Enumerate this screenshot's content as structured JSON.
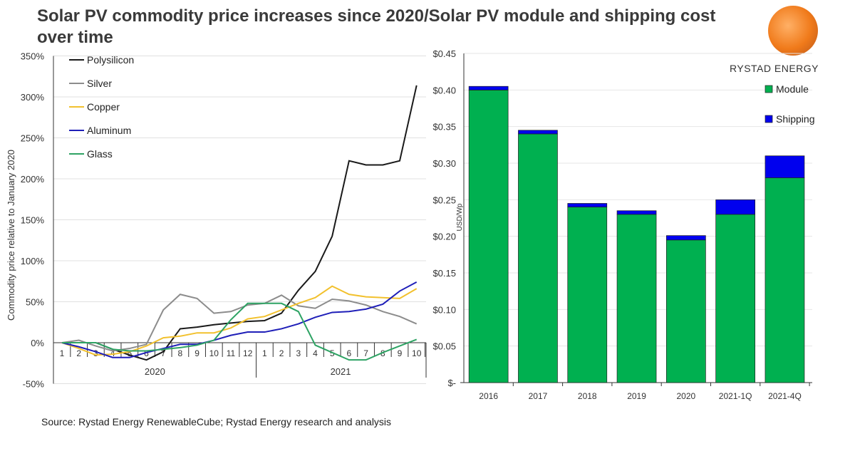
{
  "title": "Solar PV commodity price increases since 2020/Solar PV module and shipping cost over time",
  "source": "Source:  Rystad Energy RenewableCube; Rystad Energy research and analysis",
  "logo_text": "RYSTAD ENERGY",
  "chart_data": [
    {
      "type": "line",
      "ylabel": "Commodity price relative to January 2020",
      "ylim": [
        -50,
        350
      ],
      "yticks": [
        "350%",
        "300%",
        "250%",
        "200%",
        "150%",
        "100%",
        "50%",
        "0%",
        "-50%"
      ],
      "ytick_values": [
        350,
        300,
        250,
        200,
        150,
        100,
        50,
        0,
        -50
      ],
      "x": [
        "1",
        "2",
        "3",
        "4",
        "5",
        "6",
        "7",
        "8",
        "9",
        "10",
        "11",
        "12",
        "1",
        "2",
        "3",
        "4",
        "5",
        "6",
        "7",
        "8",
        "9",
        "10"
      ],
      "x_groups": [
        "2020",
        "2021"
      ],
      "legend": "top-left",
      "grid": true,
      "series": [
        {
          "name": "Polysilicon",
          "color": "#1a1a1a",
          "values": [
            0,
            0,
            0,
            -8,
            -15,
            -21,
            -11,
            17,
            19,
            22,
            24,
            26,
            27,
            36,
            64,
            87,
            130,
            222,
            217,
            217,
            222,
            314
          ]
        },
        {
          "name": "Silver",
          "color": "#8c8c8c",
          "values": [
            0,
            3,
            -4,
            -10,
            -7,
            -2,
            40,
            59,
            54,
            36,
            38,
            46,
            48,
            58,
            45,
            42,
            53,
            51,
            46,
            38,
            32,
            23
          ]
        },
        {
          "name": "Copper",
          "color": "#f2c12e",
          "values": [
            0,
            -7,
            -15,
            -14,
            -11,
            -4,
            6,
            8,
            12,
            12,
            18,
            29,
            32,
            40,
            48,
            55,
            69,
            59,
            56,
            55,
            54,
            66
          ]
        },
        {
          "name": "Aluminum",
          "color": "#1f1fb8",
          "values": [
            0,
            -5,
            -11,
            -18,
            -18,
            -12,
            -7,
            -2,
            -2,
            3,
            9,
            13,
            13,
            17,
            23,
            31,
            37,
            38,
            41,
            47,
            63,
            74
          ]
        },
        {
          "name": "Glass",
          "color": "#2ea364",
          "values": [
            0,
            0,
            0,
            -8,
            -10,
            -10,
            -8,
            -6,
            -3,
            3,
            28,
            48,
            48,
            48,
            38,
            -3,
            -12,
            -21,
            -21,
            -12,
            -4,
            4
          ]
        }
      ]
    },
    {
      "type": "bar",
      "stacked": true,
      "ylabel": "USD/Wp",
      "ylim": [
        0,
        0.45
      ],
      "yticks": [
        "$0.45",
        "$0.40",
        "$0.35",
        "$0.30",
        "$0.25",
        "$0.20",
        "$0.15",
        "$0.10",
        "$0.05",
        "$-"
      ],
      "ytick_values": [
        0.45,
        0.4,
        0.35,
        0.3,
        0.25,
        0.2,
        0.15,
        0.1,
        0.05,
        0
      ],
      "categories": [
        "2016",
        "2017",
        "2018",
        "2019",
        "2020",
        "2021-1Q",
        "2021-4Q"
      ],
      "legend": "top-right",
      "grid": true,
      "series": [
        {
          "name": "Module",
          "color": "#00b050",
          "values": [
            0.4,
            0.34,
            0.24,
            0.23,
            0.195,
            0.23,
            0.28
          ]
        },
        {
          "name": "Shipping",
          "color": "#0000ee",
          "values": [
            0.005,
            0.005,
            0.005,
            0.005,
            0.006,
            0.02,
            0.03
          ]
        }
      ]
    }
  ]
}
